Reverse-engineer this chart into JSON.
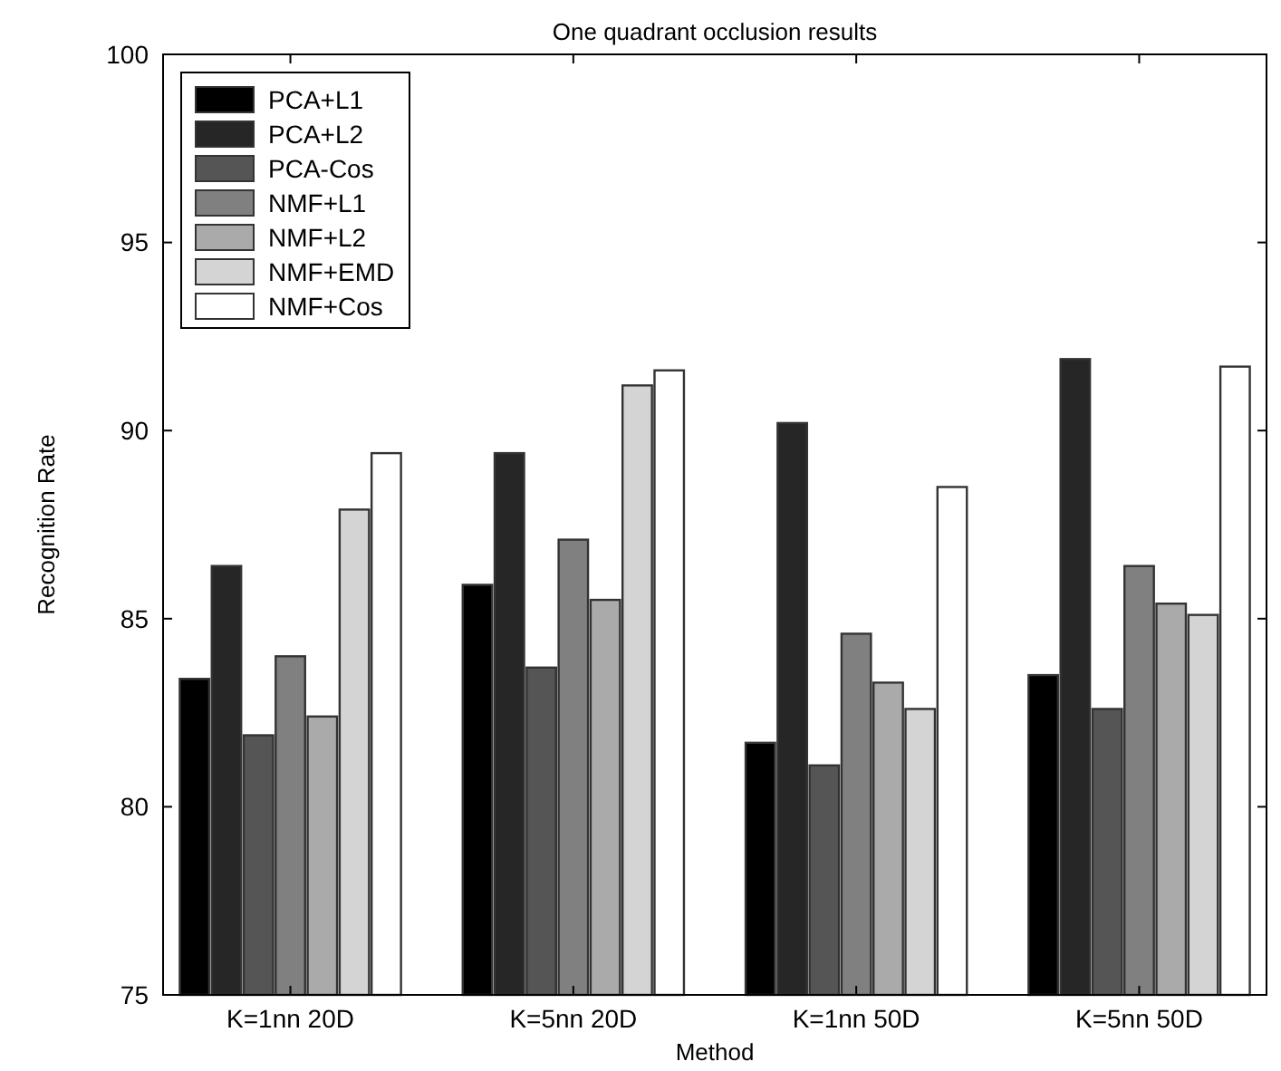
{
  "chart_data": {
    "type": "bar",
    "title": "One quadrant occlusion results",
    "xlabel": "Method",
    "ylabel": "Recognition Rate",
    "categories": [
      "K=1nn 20D",
      "K=5nn 20D",
      "K=1nn 50D",
      "K=5nn 50D"
    ],
    "series": [
      {
        "name": "PCA+L1",
        "color": "#000000",
        "values": [
          83.4,
          85.9,
          81.7,
          83.5
        ]
      },
      {
        "name": "PCA+L2",
        "color": "#262626",
        "values": [
          86.4,
          89.4,
          90.2,
          91.9
        ]
      },
      {
        "name": "PCA-Cos",
        "color": "#555555",
        "values": [
          81.9,
          83.7,
          81.1,
          82.6
        ]
      },
      {
        "name": "NMF+L1",
        "color": "#808080",
        "values": [
          84.0,
          87.1,
          84.6,
          86.4
        ]
      },
      {
        "name": "NMF+L2",
        "color": "#aaaaaa",
        "values": [
          82.4,
          85.5,
          83.3,
          85.4
        ]
      },
      {
        "name": "NMF+EMD",
        "color": "#d4d4d4",
        "values": [
          87.9,
          91.2,
          82.6,
          85.1
        ]
      },
      {
        "name": "NMF+Cos",
        "color": "#ffffff",
        "values": [
          89.4,
          91.6,
          88.5,
          91.7
        ]
      }
    ],
    "ylim": [
      75,
      100
    ],
    "yticks": [
      75,
      80,
      85,
      90,
      95,
      100
    ],
    "grid": false,
    "legend": "top left"
  }
}
